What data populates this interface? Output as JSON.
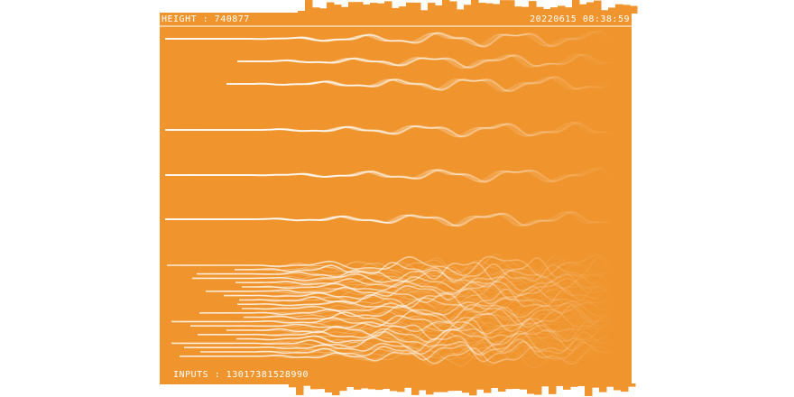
{
  "header": {
    "height_label": "HEIGHT : 740877",
    "timestamp": "20220615 08:38:59"
  },
  "footer": {
    "inputs_label": "INPUTS : 13017381528990"
  }
}
